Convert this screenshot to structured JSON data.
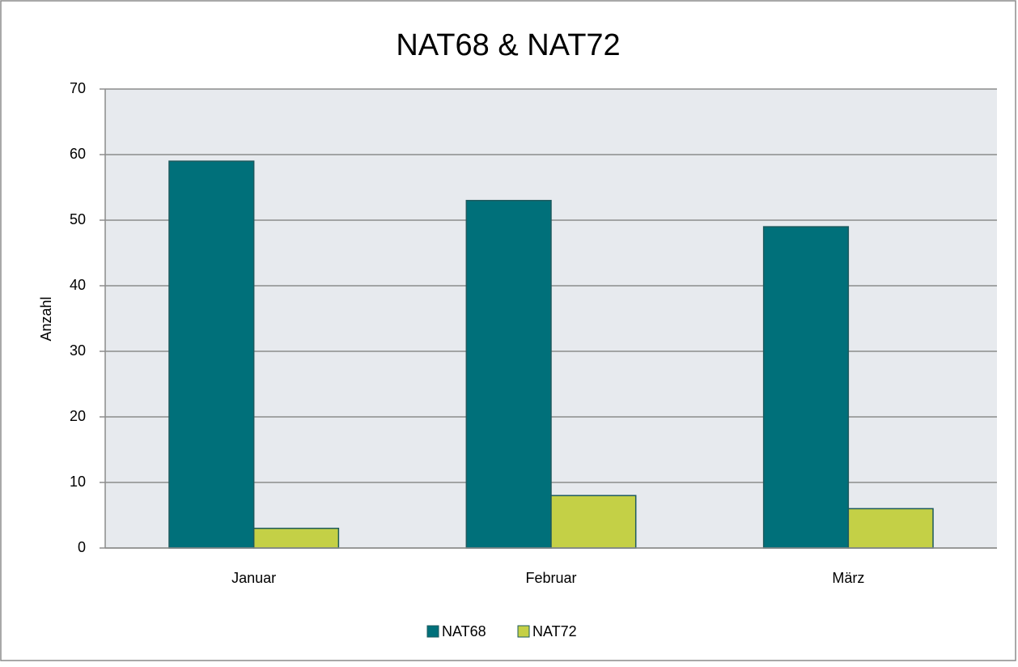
{
  "chart_data": {
    "type": "bar",
    "title": "NAT68 & NAT72",
    "y_label": "Anzahl",
    "categories": [
      "Januar",
      "Februar",
      "März"
    ],
    "series": [
      {
        "name": "NAT68",
        "color": "#00707a",
        "values": [
          59,
          53,
          49
        ]
      },
      {
        "name": "NAT72",
        "color": "#c4d046",
        "values": [
          3,
          8,
          6
        ]
      }
    ],
    "ylim": [
      0,
      70
    ],
    "yticks": [
      0,
      10,
      20,
      30,
      40,
      50,
      60,
      70
    ],
    "grid": true,
    "legend": "bottom"
  }
}
